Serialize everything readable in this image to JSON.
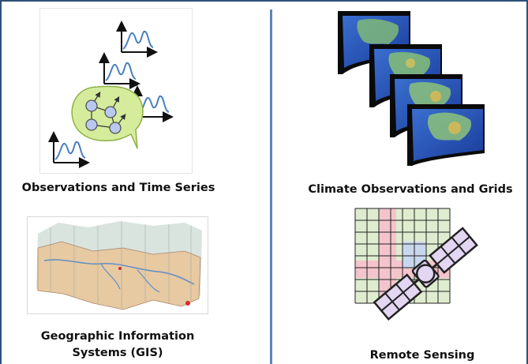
{
  "panels": {
    "observations": {
      "caption": "Observations and Time Series"
    },
    "climate": {
      "caption": "Climate Observations and Grids"
    },
    "gis": {
      "caption_line1": "Geographic Information",
      "caption_line2": "Systems (GIS)"
    },
    "remote": {
      "caption": "Remote Sensing"
    }
  },
  "colors": {
    "frame": "#2f4f7a",
    "divider": "#5b86b5",
    "bubble_fill": "#d4ec9c",
    "node_fill": "#b9c8ee",
    "series_line": "#4a7fc0",
    "grid_pink": "#f4c4cc",
    "grid_green": "#dfeccf",
    "grid_blue": "#c9d7ee",
    "satellite_panel": "#e3d6f2"
  },
  "icons": [
    "time-series-icon",
    "network-bubble-icon",
    "map-stack-icon",
    "terrain-block-icon",
    "satellite-icon",
    "grid-icon"
  ]
}
